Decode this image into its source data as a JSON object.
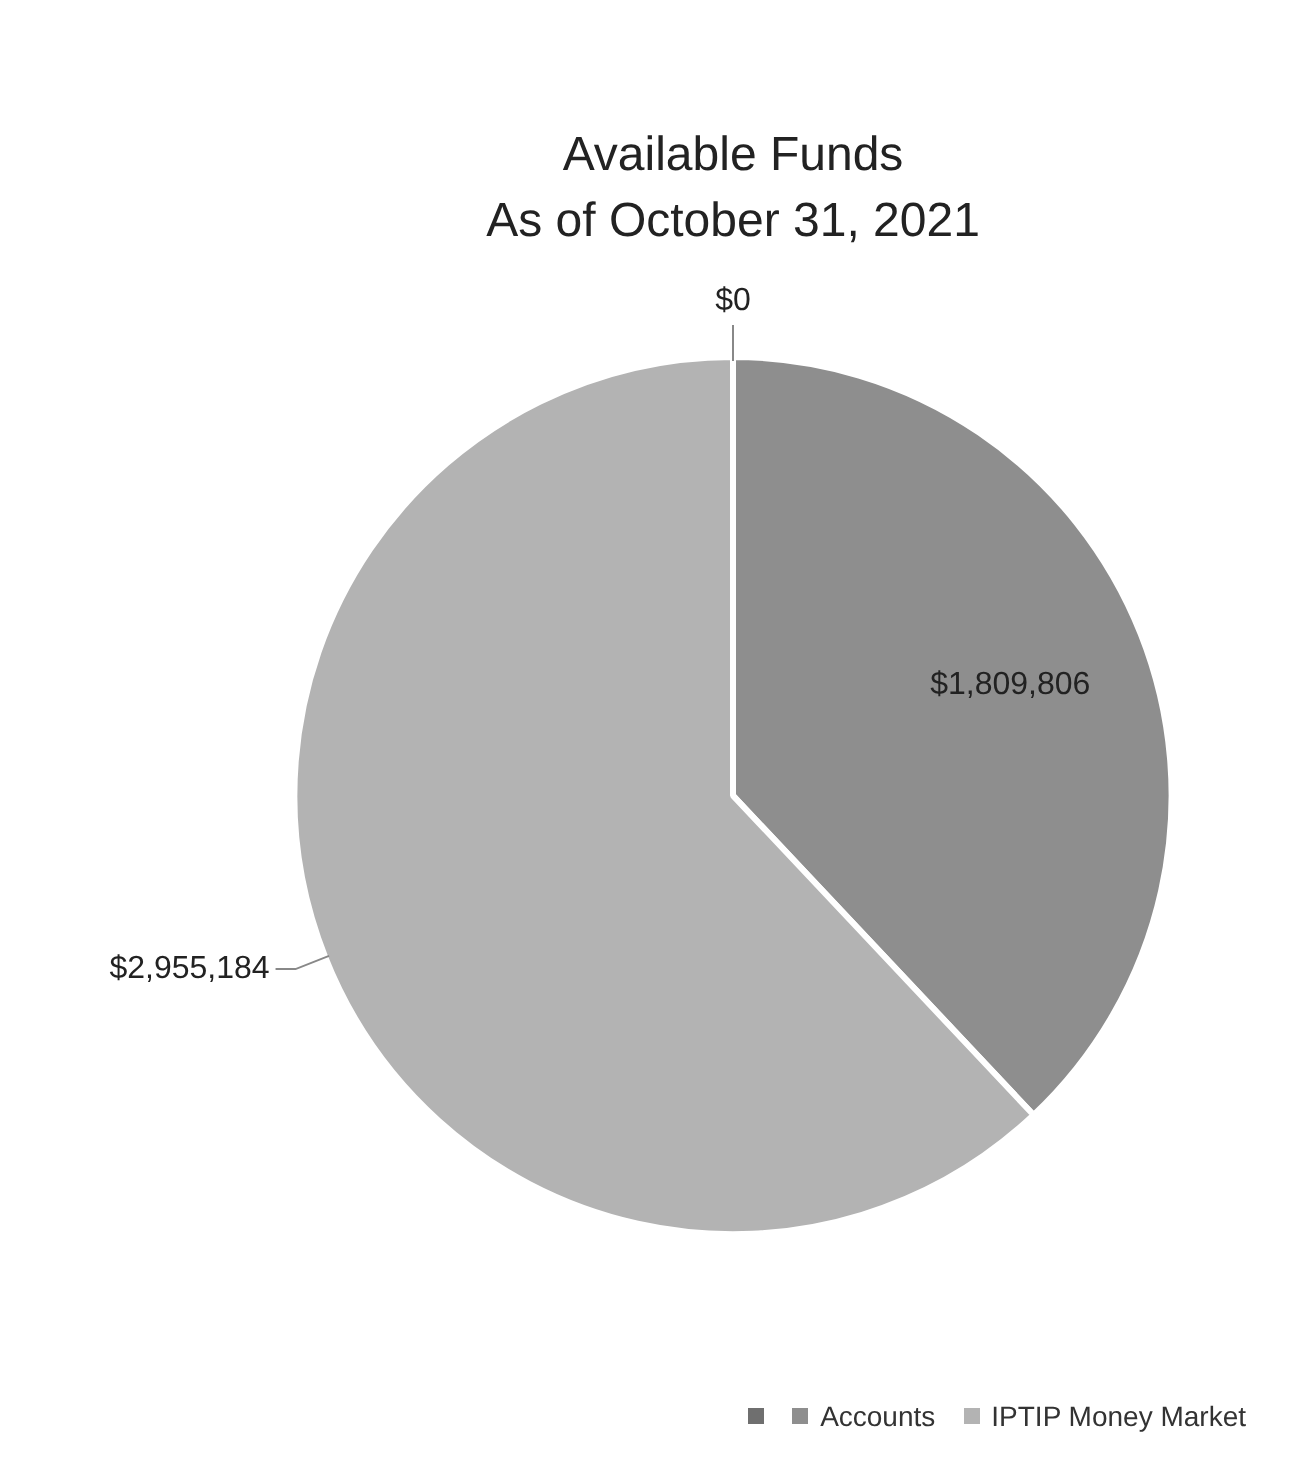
{
  "chart_data": {
    "type": "pie",
    "title": "Available Funds",
    "subtitle": "As of October 31, 2021",
    "categories": [
      null,
      "Accounts",
      "IPTIP Money Market"
    ],
    "values": [
      0,
      1809806,
      2955184
    ],
    "colors": [
      "#6f6f6f",
      "#8e8e8e",
      "#b3b3b3"
    ],
    "value_labels": [
      "$0",
      "$1,809,806",
      "$2,955,184"
    ],
    "legend": "bottom"
  }
}
